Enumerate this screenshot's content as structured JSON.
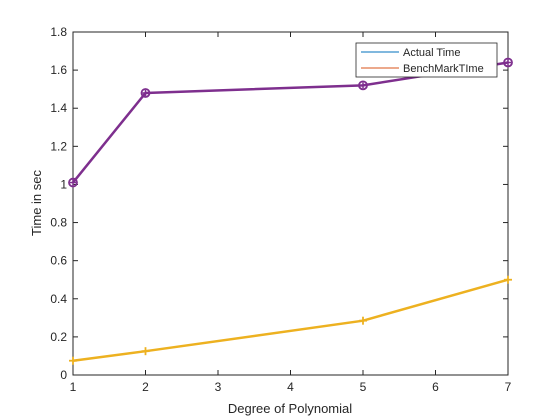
{
  "chart_data": {
    "type": "line",
    "title": "",
    "xlabel": "Degree of Polynomial",
    "ylabel": "Time in sec",
    "xlim": [
      1,
      7
    ],
    "ylim": [
      0,
      1.8
    ],
    "xticks": [
      "1",
      "2",
      "3",
      "4",
      "5",
      "6",
      "7"
    ],
    "yticks": [
      "0",
      "0.2",
      "0.4",
      "0.6",
      "0.8",
      "1",
      "1.2",
      "1.4",
      "1.6",
      "1.8"
    ],
    "grid": false,
    "legend_position": "top-right",
    "legend": [
      {
        "label": "Actual Time",
        "color": "#0072BD"
      },
      {
        "label": "BenchMarkTIme",
        "color": "#D95319"
      }
    ],
    "series": [
      {
        "name": "Actual Time",
        "color": "#7E2F8E",
        "marker": "o",
        "x": [
          1,
          2,
          5,
          7
        ],
        "y": [
          1.01,
          1.48,
          1.52,
          1.64
        ]
      },
      {
        "name": "BenchMarkTIme",
        "color": "#EDB120",
        "marker": "+",
        "x": [
          1,
          2,
          5,
          7
        ],
        "y": [
          0.075,
          0.125,
          0.285,
          0.5
        ]
      }
    ]
  }
}
